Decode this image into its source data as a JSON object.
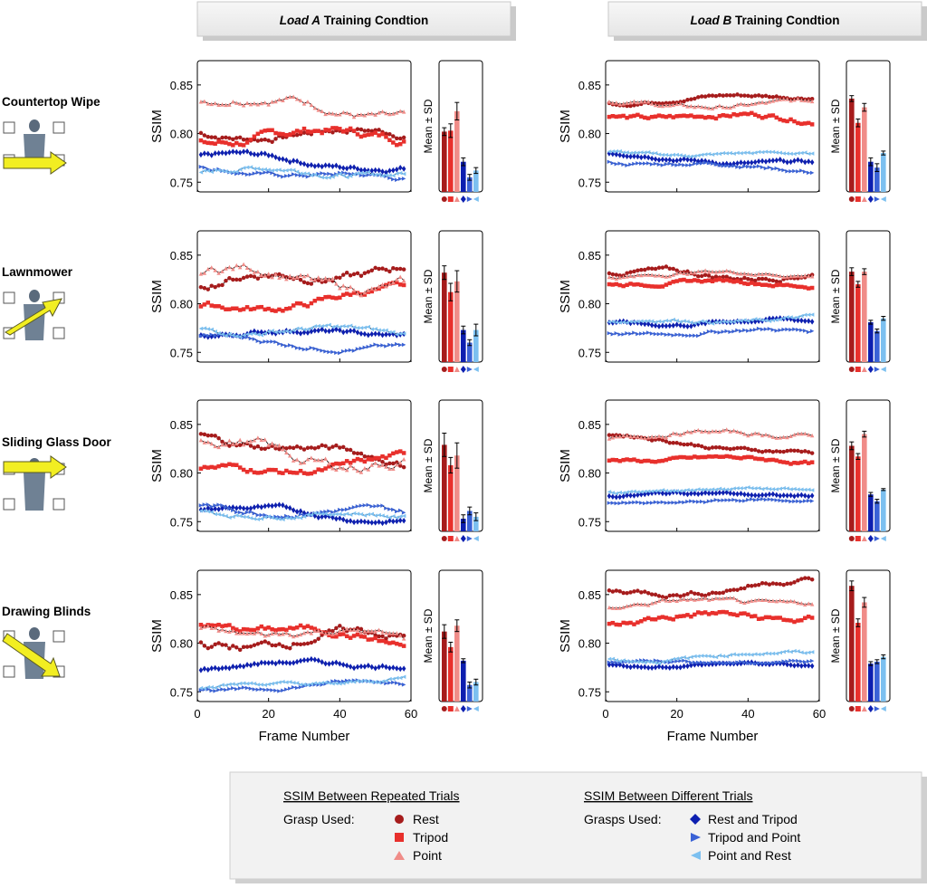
{
  "headers": [
    {
      "italic": "Load A",
      "rest": " Training Condtion"
    },
    {
      "italic": "Load B",
      "rest": " Training Condtion"
    }
  ],
  "rows": [
    "Countertop Wipe",
    "Lawnmower",
    "Sliding Glass Door",
    "Drawing Blinds"
  ],
  "axis": {
    "ylabel": "SSIM",
    "xlabel": "Frame Number",
    "bar_ylabel": "Mean ± SD"
  },
  "legend": {
    "left_title": "SSIM Between Repeated Trials",
    "left_label": "Grasp Used:",
    "left_items": [
      "Rest",
      "Tripod",
      "Point"
    ],
    "right_title": "SSIM Between Different Trials",
    "right_label": "Grasps Used:",
    "right_items": [
      "Rest and Tripod",
      "Tripod and Point",
      "Point and Rest"
    ]
  },
  "colors": {
    "rest": "#a61c1c",
    "tripod": "#e8302c",
    "point": "#f08c88",
    "rest_tripod": "#0d1fb0",
    "tripod_point": "#3a62d6",
    "point_rest": "#7cc0f0",
    "header_bg": "#f0f0f0",
    "legend_bg": "#f2f2f2"
  },
  "chart_data": [
    {
      "type": "line",
      "condition": "Load A",
      "task": "Countertop Wipe",
      "xlim": [
        0,
        60
      ],
      "ylim": [
        0.74,
        0.875
      ],
      "xticks": [
        0,
        20,
        40,
        60
      ],
      "yticks": [
        0.75,
        0.8,
        0.85
      ],
      "series": [
        {
          "name": "Rest",
          "start": 0.8,
          "end": 0.8,
          "wave": 0.008
        },
        {
          "name": "Tripod",
          "start": 0.795,
          "end": 0.8,
          "wave": 0.01
        },
        {
          "name": "Point",
          "start": 0.84,
          "end": 0.82,
          "wave": 0.01
        },
        {
          "name": "Rest and Tripod",
          "start": 0.778,
          "end": 0.765,
          "wave": 0.006
        },
        {
          "name": "Tripod and Point",
          "start": 0.765,
          "end": 0.752,
          "wave": 0.005
        },
        {
          "name": "Point and Rest",
          "start": 0.762,
          "end": 0.76,
          "wave": 0.006
        }
      ]
    },
    {
      "type": "bar",
      "condition": "Load A",
      "task": "Countertop Wipe",
      "ylim": [
        0.74,
        0.875
      ],
      "categories": [
        "Rest",
        "Tripod",
        "Point",
        "Rest and Tripod",
        "Tripod and Point",
        "Point and Rest"
      ],
      "values": [
        0.802,
        0.803,
        0.823,
        0.771,
        0.755,
        0.762
      ],
      "sd": [
        0.004,
        0.007,
        0.009,
        0.004,
        0.003,
        0.003
      ]
    },
    {
      "type": "line",
      "condition": "Load B",
      "task": "Countertop Wipe",
      "xlim": [
        0,
        60
      ],
      "ylim": [
        0.74,
        0.875
      ],
      "xticks": [
        0,
        20,
        40,
        60
      ],
      "yticks": [
        0.75,
        0.8,
        0.85
      ],
      "series": [
        {
          "name": "Rest",
          "start": 0.833,
          "end": 0.84,
          "wave": 0.004
        },
        {
          "name": "Tripod",
          "start": 0.82,
          "end": 0.815,
          "wave": 0.006
        },
        {
          "name": "Point",
          "start": 0.83,
          "end": 0.83,
          "wave": 0.005
        },
        {
          "name": "Rest and Tripod",
          "start": 0.778,
          "end": 0.768,
          "wave": 0.004
        },
        {
          "name": "Tripod and Point",
          "start": 0.772,
          "end": 0.763,
          "wave": 0.004
        },
        {
          "name": "Point and Rest",
          "start": 0.78,
          "end": 0.778,
          "wave": 0.003
        }
      ]
    },
    {
      "type": "bar",
      "condition": "Load B",
      "task": "Countertop Wipe",
      "ylim": [
        0.74,
        0.875
      ],
      "categories": [
        "Rest",
        "Tripod",
        "Point",
        "Rest and Tripod",
        "Tripod and Point",
        "Point and Rest"
      ],
      "values": [
        0.836,
        0.811,
        0.827,
        0.771,
        0.765,
        0.78
      ],
      "sd": [
        0.003,
        0.004,
        0.004,
        0.004,
        0.004,
        0.002
      ]
    },
    {
      "type": "line",
      "condition": "Load A",
      "task": "Lawnmower",
      "xlim": [
        0,
        60
      ],
      "ylim": [
        0.74,
        0.875
      ],
      "xticks": [
        0,
        20,
        40,
        60
      ],
      "yticks": [
        0.75,
        0.8,
        0.85
      ],
      "series": [
        {
          "name": "Rest",
          "start": 0.82,
          "end": 0.838,
          "wave": 0.01
        },
        {
          "name": "Tripod",
          "start": 0.793,
          "end": 0.812,
          "wave": 0.008
        },
        {
          "name": "Point",
          "start": 0.835,
          "end": 0.818,
          "wave": 0.012
        },
        {
          "name": "Rest and Tripod",
          "start": 0.77,
          "end": 0.77,
          "wave": 0.005
        },
        {
          "name": "Tripod and Point",
          "start": 0.765,
          "end": 0.753,
          "wave": 0.005
        },
        {
          "name": "Point and Rest",
          "start": 0.775,
          "end": 0.77,
          "wave": 0.006
        }
      ]
    },
    {
      "type": "bar",
      "condition": "Load A",
      "task": "Lawnmower",
      "ylim": [
        0.74,
        0.875
      ],
      "categories": [
        "Rest",
        "Tripod",
        "Point",
        "Rest and Tripod",
        "Tripod and Point",
        "Point and Rest"
      ],
      "values": [
        0.832,
        0.812,
        0.823,
        0.773,
        0.76,
        0.773
      ],
      "sd": [
        0.007,
        0.009,
        0.011,
        0.004,
        0.003,
        0.006
      ]
    },
    {
      "type": "line",
      "condition": "Load B",
      "task": "Lawnmower",
      "xlim": [
        0,
        60
      ],
      "ylim": [
        0.74,
        0.875
      ],
      "xticks": [
        0,
        20,
        40,
        60
      ],
      "yticks": [
        0.75,
        0.8,
        0.85
      ],
      "series": [
        {
          "name": "Rest",
          "start": 0.83,
          "end": 0.83,
          "wave": 0.006
        },
        {
          "name": "Tripod",
          "start": 0.823,
          "end": 0.82,
          "wave": 0.004
        },
        {
          "name": "Point",
          "start": 0.83,
          "end": 0.832,
          "wave": 0.004
        },
        {
          "name": "Rest and Tripod",
          "start": 0.78,
          "end": 0.782,
          "wave": 0.004
        },
        {
          "name": "Tripod and Point",
          "start": 0.77,
          "end": 0.772,
          "wave": 0.004
        },
        {
          "name": "Point and Rest",
          "start": 0.78,
          "end": 0.786,
          "wave": 0.004
        }
      ]
    },
    {
      "type": "bar",
      "condition": "Load B",
      "task": "Lawnmower",
      "ylim": [
        0.74,
        0.875
      ],
      "categories": [
        "Rest",
        "Tripod",
        "Point",
        "Rest and Tripod",
        "Tripod and Point",
        "Point and Rest"
      ],
      "values": [
        0.833,
        0.82,
        0.833,
        0.781,
        0.772,
        0.785
      ],
      "sd": [
        0.004,
        0.003,
        0.003,
        0.002,
        0.002,
        0.002
      ]
    },
    {
      "type": "line",
      "condition": "Load A",
      "task": "Sliding Glass Door",
      "xlim": [
        0,
        60
      ],
      "ylim": [
        0.74,
        0.875
      ],
      "xticks": [
        0,
        20,
        40,
        60
      ],
      "yticks": [
        0.75,
        0.8,
        0.85
      ],
      "series": [
        {
          "name": "Rest",
          "start": 0.84,
          "end": 0.81,
          "wave": 0.008
        },
        {
          "name": "Tripod",
          "start": 0.8,
          "end": 0.812,
          "wave": 0.008
        },
        {
          "name": "Point",
          "start": 0.83,
          "end": 0.808,
          "wave": 0.014
        },
        {
          "name": "Rest and Tripod",
          "start": 0.765,
          "end": 0.752,
          "wave": 0.005
        },
        {
          "name": "Tripod and Point",
          "start": 0.765,
          "end": 0.758,
          "wave": 0.006
        },
        {
          "name": "Point and Rest",
          "start": 0.76,
          "end": 0.755,
          "wave": 0.005
        }
      ]
    },
    {
      "type": "bar",
      "condition": "Load A",
      "task": "Sliding Glass Door",
      "ylim": [
        0.74,
        0.875
      ],
      "categories": [
        "Rest",
        "Tripod",
        "Point",
        "Rest and Tripod",
        "Tripod and Point",
        "Point and Rest"
      ],
      "values": [
        0.829,
        0.808,
        0.818,
        0.753,
        0.761,
        0.755
      ],
      "sd": [
        0.012,
        0.008,
        0.013,
        0.004,
        0.004,
        0.004
      ]
    },
    {
      "type": "line",
      "condition": "Load B",
      "task": "Sliding Glass Door",
      "xlim": [
        0,
        60
      ],
      "ylim": [
        0.74,
        0.875
      ],
      "xticks": [
        0,
        20,
        40,
        60
      ],
      "yticks": [
        0.75,
        0.8,
        0.85
      ],
      "series": [
        {
          "name": "Rest",
          "start": 0.838,
          "end": 0.82,
          "wave": 0.004
        },
        {
          "name": "Tripod",
          "start": 0.815,
          "end": 0.812,
          "wave": 0.004
        },
        {
          "name": "Point",
          "start": 0.838,
          "end": 0.842,
          "wave": 0.005
        },
        {
          "name": "Rest and Tripod",
          "start": 0.778,
          "end": 0.778,
          "wave": 0.003
        },
        {
          "name": "Tripod and Point",
          "start": 0.77,
          "end": 0.771,
          "wave": 0.003
        },
        {
          "name": "Point and Rest",
          "start": 0.782,
          "end": 0.783,
          "wave": 0.003
        }
      ]
    },
    {
      "type": "bar",
      "condition": "Load B",
      "task": "Sliding Glass Door",
      "ylim": [
        0.74,
        0.875
      ],
      "categories": [
        "Rest",
        "Tripod",
        "Point",
        "Rest and Tripod",
        "Tripod and Point",
        "Point and Rest"
      ],
      "values": [
        0.828,
        0.817,
        0.84,
        0.778,
        0.771,
        0.783
      ],
      "sd": [
        0.004,
        0.003,
        0.003,
        0.002,
        0.002,
        0.001
      ]
    },
    {
      "type": "line",
      "condition": "Load A",
      "task": "Drawing Blinds",
      "xlim": [
        0,
        60
      ],
      "ylim": [
        0.74,
        0.875
      ],
      "xticks": [
        0,
        20,
        40,
        60
      ],
      "yticks": [
        0.75,
        0.8,
        0.85
      ],
      "series": [
        {
          "name": "Rest",
          "start": 0.8,
          "end": 0.808,
          "wave": 0.01
        },
        {
          "name": "Tripod",
          "start": 0.823,
          "end": 0.8,
          "wave": 0.008
        },
        {
          "name": "Point",
          "start": 0.815,
          "end": 0.806,
          "wave": 0.008
        },
        {
          "name": "Rest and Tripod",
          "start": 0.776,
          "end": 0.78,
          "wave": 0.005
        },
        {
          "name": "Tripod and Point",
          "start": 0.752,
          "end": 0.76,
          "wave": 0.004
        },
        {
          "name": "Point and Rest",
          "start": 0.754,
          "end": 0.763,
          "wave": 0.004
        }
      ]
    },
    {
      "type": "bar",
      "condition": "Load A",
      "task": "Drawing Blinds",
      "ylim": [
        0.74,
        0.875
      ],
      "categories": [
        "Rest",
        "Tripod",
        "Point",
        "Rest and Tripod",
        "Tripod and Point",
        "Point and Rest"
      ],
      "values": [
        0.812,
        0.796,
        0.818,
        0.782,
        0.757,
        0.76
      ],
      "sd": [
        0.007,
        0.005,
        0.006,
        0.002,
        0.003,
        0.003
      ]
    },
    {
      "type": "line",
      "condition": "Load B",
      "task": "Drawing Blinds",
      "xlim": [
        0,
        60
      ],
      "ylim": [
        0.74,
        0.875
      ],
      "xticks": [
        0,
        20,
        40,
        60
      ],
      "yticks": [
        0.75,
        0.8,
        0.85
      ],
      "series": [
        {
          "name": "Rest",
          "start": 0.85,
          "end": 0.863,
          "wave": 0.006
        },
        {
          "name": "Tripod",
          "start": 0.823,
          "end": 0.828,
          "wave": 0.008
        },
        {
          "name": "Point",
          "start": 0.84,
          "end": 0.843,
          "wave": 0.005
        },
        {
          "name": "Rest and Tripod",
          "start": 0.778,
          "end": 0.777,
          "wave": 0.003
        },
        {
          "name": "Tripod and Point",
          "start": 0.78,
          "end": 0.782,
          "wave": 0.003
        },
        {
          "name": "Point and Rest",
          "start": 0.783,
          "end": 0.79,
          "wave": 0.004
        }
      ]
    },
    {
      "type": "bar",
      "condition": "Load B",
      "task": "Drawing Blinds",
      "ylim": [
        0.74,
        0.875
      ],
      "categories": [
        "Rest",
        "Tripod",
        "Point",
        "Rest and Tripod",
        "Tripod and Point",
        "Point and Rest"
      ],
      "values": [
        0.859,
        0.821,
        0.842,
        0.779,
        0.781,
        0.786
      ],
      "sd": [
        0.005,
        0.004,
        0.005,
        0.002,
        0.002,
        0.002
      ]
    }
  ]
}
